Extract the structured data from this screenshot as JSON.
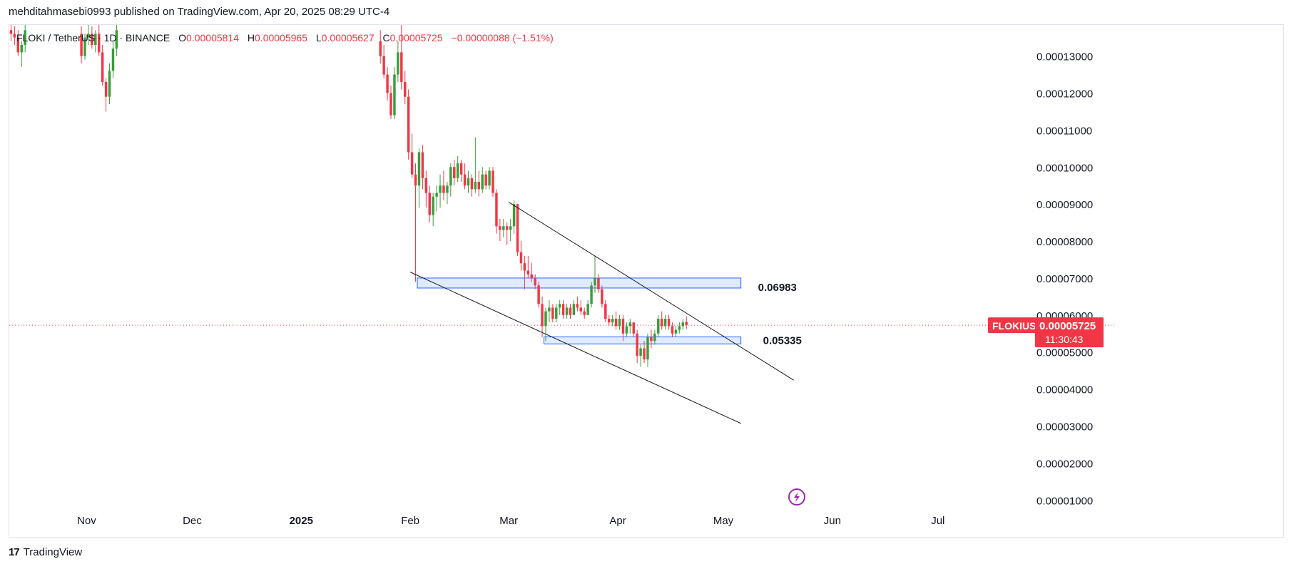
{
  "publisher": {
    "text": "mehditahmasebi0993 published on TradingView.com, Apr 20, 2025 08:29 UTC-4"
  },
  "legend": {
    "symbol": "FLOKI / TetherUS · 1D · BINANCE",
    "open_label": "O",
    "open": "0.00005814",
    "high_label": "H",
    "high": "0.00005965",
    "low_label": "L",
    "low": "0.00005627",
    "close_label": "C",
    "close": "0.00005725",
    "change": "−0.00000088 (−1.51%)"
  },
  "price_tag": {
    "symbol": "FLOKIUSDT",
    "price": "0.00005725",
    "countdown": "11:30:43",
    "color": "#f23645"
  },
  "footer": {
    "logo": "17",
    "brand": "TradingView"
  },
  "colors": {
    "up": "#089981",
    "up_body": "#3a9d3a",
    "down": "#f23645",
    "zone_fill": "#dbe7ff",
    "zone_stroke": "#2962ff",
    "trendline": "#131722",
    "grid_text": "#131722",
    "lightning": "#9c27b0"
  },
  "chart_data": {
    "type": "candlestick",
    "title": "FLOKI / TetherUS · 1D · BINANCE",
    "y_axis": {
      "ylim": [
        8.9e-06,
        0.0001384
      ],
      "ticks": [
        0.00013,
        0.00012,
        0.00011,
        0.0001,
        9e-05,
        8e-05,
        7e-05,
        6e-05,
        5e-05,
        4e-05,
        3e-05,
        2e-05,
        1e-05
      ],
      "tick_labels": [
        "0.00013000",
        "0.00012000",
        "0.00011000",
        "0.00010000",
        "0.00009000",
        "0.00008000",
        "0.00007000",
        "0.00006000",
        "0.00005000",
        "0.00004000",
        "0.00003000",
        "0.00002000",
        "0.00001000"
      ]
    },
    "x_axis": {
      "start_date": "2024-10-10",
      "end_date": "2025-07-27",
      "tick_labels": [
        {
          "label": "Nov",
          "date": "2024-11-01"
        },
        {
          "label": "Dec",
          "date": "2024-12-01"
        },
        {
          "label": "2025",
          "date": "2025-01-01",
          "bold": true
        },
        {
          "label": "Feb",
          "date": "2025-02-01"
        },
        {
          "label": "Mar",
          "date": "2025-03-01"
        },
        {
          "label": "Apr",
          "date": "2025-04-01"
        },
        {
          "label": "May",
          "date": "2025-05-01"
        },
        {
          "label": "Jun",
          "date": "2025-06-01"
        },
        {
          "label": "Jul",
          "date": "2025-07-01"
        }
      ]
    },
    "current_price": 5.725e-05,
    "candles": [
      {
        "d": "2024-10-10",
        "o": 0.000137,
        "h": 0.000139,
        "l": 0.000134,
        "c": 0.000136
      },
      {
        "d": "2024-10-11",
        "o": 0.000136,
        "h": 0.000138,
        "l": 0.000133,
        "c": 0.000135
      },
      {
        "d": "2024-10-12",
        "o": 0.000135,
        "h": 0.000137,
        "l": 0.00013,
        "c": 0.000131
      },
      {
        "d": "2024-10-13",
        "o": 0.000131,
        "h": 0.000134,
        "l": 0.000127,
        "c": 0.000133
      },
      {
        "d": "2024-10-14",
        "o": 0.000133,
        "h": 0.000139,
        "l": 0.000131,
        "c": 0.000137
      },
      {
        "d": "2024-10-30",
        "o": 0.000136,
        "h": 0.000138,
        "l": 0.000128,
        "c": 0.00013
      },
      {
        "d": "2024-10-31",
        "o": 0.00013,
        "h": 0.000136,
        "l": 0.000129,
        "c": 0.000135
      },
      {
        "d": "2024-11-01",
        "o": 0.000135,
        "h": 0.000139,
        "l": 0.000133,
        "c": 0.000136
      },
      {
        "d": "2024-11-02",
        "o": 0.000136,
        "h": 0.000138,
        "l": 0.000132,
        "c": 0.000133
      },
      {
        "d": "2024-11-03",
        "o": 0.000133,
        "h": 0.000137,
        "l": 0.000131,
        "c": 0.000136
      },
      {
        "d": "2024-11-04",
        "o": 0.000136,
        "h": 0.000139,
        "l": 0.00013,
        "c": 0.000131
      },
      {
        "d": "2024-11-05",
        "o": 0.000131,
        "h": 0.000133,
        "l": 0.000122,
        "c": 0.000123
      },
      {
        "d": "2024-11-06",
        "o": 0.000123,
        "h": 0.000124,
        "l": 0.000115,
        "c": 0.000119
      },
      {
        "d": "2024-11-07",
        "o": 0.000119,
        "h": 0.000128,
        "l": 0.000117,
        "c": 0.000126
      },
      {
        "d": "2024-11-08",
        "o": 0.000126,
        "h": 0.000134,
        "l": 0.000124,
        "c": 0.000132
      },
      {
        "d": "2024-11-09",
        "o": 0.000132,
        "h": 0.000139,
        "l": 0.00013,
        "c": 0.000137
      },
      {
        "d": "2025-01-23",
        "o": 0.000134,
        "h": 0.000137,
        "l": 0.000128,
        "c": 0.00013
      },
      {
        "d": "2025-01-24",
        "o": 0.00013,
        "h": 0.000133,
        "l": 0.000124,
        "c": 0.000125
      },
      {
        "d": "2025-01-25",
        "o": 0.000125,
        "h": 0.000127,
        "l": 0.000118,
        "c": 0.00012
      },
      {
        "d": "2025-01-26",
        "o": 0.00012,
        "h": 0.000122,
        "l": 0.000113,
        "c": 0.000114
      },
      {
        "d": "2025-01-27",
        "o": 0.000114,
        "h": 0.000127,
        "l": 0.000113,
        "c": 0.000125
      },
      {
        "d": "2025-01-28",
        "o": 0.000125,
        "h": 0.000134,
        "l": 0.000123,
        "c": 0.000131
      },
      {
        "d": "2025-01-29",
        "o": 0.000131,
        "h": 0.000139,
        "l": 0.000121,
        "c": 0.000123
      },
      {
        "d": "2025-01-30",
        "o": 0.000123,
        "h": 0.000126,
        "l": 0.000117,
        "c": 0.000119
      },
      {
        "d": "2025-01-31",
        "o": 0.000119,
        "h": 0.000121,
        "l": 0.000102,
        "c": 0.000104
      },
      {
        "d": "2025-02-01",
        "o": 0.000104,
        "h": 0.000109,
        "l": 9.7e-05,
        "c": 9.8e-05
      },
      {
        "d": "2025-02-02",
        "o": 9.8e-05,
        "h": 0.000101,
        "l": 6.9e-05,
        "c": 9.5e-05
      },
      {
        "d": "2025-02-03",
        "o": 9.5e-05,
        "h": 0.000105,
        "l": 8.9e-05,
        "c": 0.000104
      },
      {
        "d": "2025-02-04",
        "o": 0.000104,
        "h": 0.000106,
        "l": 9.4e-05,
        "c": 9.7e-05
      },
      {
        "d": "2025-02-05",
        "o": 9.7e-05,
        "h": 9.9e-05,
        "l": 8.9e-05,
        "c": 9.3e-05
      },
      {
        "d": "2025-02-06",
        "o": 9.3e-05,
        "h": 9.5e-05,
        "l": 8.5e-05,
        "c": 8.7e-05
      },
      {
        "d": "2025-02-07",
        "o": 8.7e-05,
        "h": 9.3e-05,
        "l": 8.4e-05,
        "c": 9.2e-05
      },
      {
        "d": "2025-02-08",
        "o": 9.2e-05,
        "h": 9.5e-05,
        "l": 8.8e-05,
        "c": 9.3e-05
      },
      {
        "d": "2025-02-09",
        "o": 9.3e-05,
        "h": 9.8e-05,
        "l": 8.9e-05,
        "c": 9.5e-05
      },
      {
        "d": "2025-02-10",
        "o": 9.5e-05,
        "h": 9.9e-05,
        "l": 9.1e-05,
        "c": 9.3e-05
      },
      {
        "d": "2025-02-11",
        "o": 9.3e-05,
        "h": 9.6e-05,
        "l": 9e-05,
        "c": 9.5e-05
      },
      {
        "d": "2025-02-12",
        "o": 9.5e-05,
        "h": 0.000101,
        "l": 9.2e-05,
        "c": 0.0001
      },
      {
        "d": "2025-02-13",
        "o": 0.0001,
        "h": 0.000102,
        "l": 9.5e-05,
        "c": 9.7e-05
      },
      {
        "d": "2025-02-14",
        "o": 9.7e-05,
        "h": 0.000103,
        "l": 9.6e-05,
        "c": 0.000101
      },
      {
        "d": "2025-02-15",
        "o": 0.000101,
        "h": 0.000102,
        "l": 9.6e-05,
        "c": 9.8e-05
      },
      {
        "d": "2025-02-16",
        "o": 9.8e-05,
        "h": 0.000101,
        "l": 9.4e-05,
        "c": 9.5e-05
      },
      {
        "d": "2025-02-17",
        "o": 9.5e-05,
        "h": 9.9e-05,
        "l": 9.3e-05,
        "c": 9.7e-05
      },
      {
        "d": "2025-02-18",
        "o": 9.7e-05,
        "h": 9.8e-05,
        "l": 9.2e-05,
        "c": 9.4e-05
      },
      {
        "d": "2025-02-19",
        "o": 9.4e-05,
        "h": 0.000108,
        "l": 9.3e-05,
        "c": 9.6e-05
      },
      {
        "d": "2025-02-20",
        "o": 9.6e-05,
        "h": 9.9e-05,
        "l": 9.2e-05,
        "c": 9.4e-05
      },
      {
        "d": "2025-02-21",
        "o": 9.4e-05,
        "h": 0.0001,
        "l": 9.3e-05,
        "c": 9.8e-05
      },
      {
        "d": "2025-02-22",
        "o": 9.8e-05,
        "h": 9.9e-05,
        "l": 9.4e-05,
        "c": 9.5e-05
      },
      {
        "d": "2025-02-23",
        "o": 9.5e-05,
        "h": 0.0001,
        "l": 9.4e-05,
        "c": 9.9e-05
      },
      {
        "d": "2025-02-24",
        "o": 9.9e-05,
        "h": 0.0001,
        "l": 9.2e-05,
        "c": 9.3e-05
      },
      {
        "d": "2025-02-25",
        "o": 9.3e-05,
        "h": 9.4e-05,
        "l": 8.2e-05,
        "c": 8.4e-05
      },
      {
        "d": "2025-02-26",
        "o": 8.4e-05,
        "h": 8.6e-05,
        "l": 8e-05,
        "c": 8.3e-05
      },
      {
        "d": "2025-02-27",
        "o": 8.3e-05,
        "h": 8.6e-05,
        "l": 8.1e-05,
        "c": 8.4e-05
      },
      {
        "d": "2025-02-28",
        "o": 8.4e-05,
        "h": 8.5e-05,
        "l": 7.9e-05,
        "c": 8.3e-05
      },
      {
        "d": "2025-03-01",
        "o": 8.3e-05,
        "h": 8.6e-05,
        "l": 8e-05,
        "c": 8.4e-05
      },
      {
        "d": "2025-03-02",
        "o": 8.4e-05,
        "h": 9.1e-05,
        "l": 8.2e-05,
        "c": 9e-05
      },
      {
        "d": "2025-03-03",
        "o": 9e-05,
        "h": 9e-05,
        "l": 7.6e-05,
        "c": 7.7e-05
      },
      {
        "d": "2025-03-04",
        "o": 7.7e-05,
        "h": 8e-05,
        "l": 7.2e-05,
        "c": 7.4e-05
      },
      {
        "d": "2025-03-05",
        "o": 7.4e-05,
        "h": 7.6e-05,
        "l": 6.7e-05,
        "c": 7.2e-05
      },
      {
        "d": "2025-03-06",
        "o": 7.2e-05,
        "h": 7.6e-05,
        "l": 7e-05,
        "c": 7.1e-05
      },
      {
        "d": "2025-03-07",
        "o": 7.1e-05,
        "h": 7.4e-05,
        "l": 6.9e-05,
        "c": 7e-05
      },
      {
        "d": "2025-03-08",
        "o": 7e-05,
        "h": 7.1e-05,
        "l": 6.7e-05,
        "c": 6.8e-05
      },
      {
        "d": "2025-03-09",
        "o": 6.8e-05,
        "h": 6.9e-05,
        "l": 6.2e-05,
        "c": 6.3e-05
      },
      {
        "d": "2025-03-10",
        "o": 6.3e-05,
        "h": 6.5e-05,
        "l": 5.4e-05,
        "c": 5.7e-05
      },
      {
        "d": "2025-03-11",
        "o": 5.7e-05,
        "h": 6.2e-05,
        "l": 5.3e-05,
        "c": 6.1e-05
      },
      {
        "d": "2025-03-12",
        "o": 6.1e-05,
        "h": 6.4e-05,
        "l": 5.8e-05,
        "c": 6.2e-05
      },
      {
        "d": "2025-03-13",
        "o": 6.2e-05,
        "h": 6.3e-05,
        "l": 5.8e-05,
        "c": 5.9e-05
      },
      {
        "d": "2025-03-14",
        "o": 5.9e-05,
        "h": 6.3e-05,
        "l": 5.8e-05,
        "c": 6.2e-05
      },
      {
        "d": "2025-03-15",
        "o": 6.2e-05,
        "h": 6.4e-05,
        "l": 6e-05,
        "c": 6.3e-05
      },
      {
        "d": "2025-03-16",
        "o": 6.3e-05,
        "h": 6.4e-05,
        "l": 5.9e-05,
        "c": 6e-05
      },
      {
        "d": "2025-03-17",
        "o": 6e-05,
        "h": 6.3e-05,
        "l": 5.9e-05,
        "c": 6.2e-05
      },
      {
        "d": "2025-03-18",
        "o": 6.2e-05,
        "h": 6.3e-05,
        "l": 5.9e-05,
        "c": 6e-05
      },
      {
        "d": "2025-03-19",
        "o": 6e-05,
        "h": 6.4e-05,
        "l": 6e-05,
        "c": 6.3e-05
      },
      {
        "d": "2025-03-20",
        "o": 6.3e-05,
        "h": 6.5e-05,
        "l": 6.1e-05,
        "c": 6.2e-05
      },
      {
        "d": "2025-03-21",
        "o": 6.2e-05,
        "h": 6.4e-05,
        "l": 6e-05,
        "c": 6.1e-05
      },
      {
        "d": "2025-03-22",
        "o": 6.1e-05,
        "h": 6.2e-05,
        "l": 5.9e-05,
        "c": 6e-05
      },
      {
        "d": "2025-03-23",
        "o": 6e-05,
        "h": 6.4e-05,
        "l": 6e-05,
        "c": 6.3e-05
      },
      {
        "d": "2025-03-24",
        "o": 6.3e-05,
        "h": 6.9e-05,
        "l": 6.2e-05,
        "c": 6.8e-05
      },
      {
        "d": "2025-03-25",
        "o": 6.8e-05,
        "h": 7.6e-05,
        "l": 6.6e-05,
        "c": 7e-05
      },
      {
        "d": "2025-03-26",
        "o": 7e-05,
        "h": 7.1e-05,
        "l": 6.6e-05,
        "c": 6.7e-05
      },
      {
        "d": "2025-03-27",
        "o": 6.7e-05,
        "h": 6.8e-05,
        "l": 6.2e-05,
        "c": 6.3e-05
      },
      {
        "d": "2025-03-28",
        "o": 6.3e-05,
        "h": 6.4e-05,
        "l": 5.8e-05,
        "c": 5.9e-05
      },
      {
        "d": "2025-03-29",
        "o": 5.9e-05,
        "h": 6e-05,
        "l": 5.7e-05,
        "c": 5.8e-05
      },
      {
        "d": "2025-03-30",
        "o": 5.8e-05,
        "h": 6e-05,
        "l": 5.7e-05,
        "c": 5.9e-05
      },
      {
        "d": "2025-03-31",
        "o": 5.9e-05,
        "h": 6.1e-05,
        "l": 5.6e-05,
        "c": 5.7e-05
      },
      {
        "d": "2025-04-01",
        "o": 5.7e-05,
        "h": 6e-05,
        "l": 5.6e-05,
        "c": 5.9e-05
      },
      {
        "d": "2025-04-02",
        "o": 5.9e-05,
        "h": 6e-05,
        "l": 5.3e-05,
        "c": 5.5e-05
      },
      {
        "d": "2025-04-03",
        "o": 5.5e-05,
        "h": 5.8e-05,
        "l": 5.4e-05,
        "c": 5.7e-05
      },
      {
        "d": "2025-04-04",
        "o": 5.7e-05,
        "h": 5.9e-05,
        "l": 5.5e-05,
        "c": 5.8e-05
      },
      {
        "d": "2025-04-05",
        "o": 5.8e-05,
        "h": 5.8e-05,
        "l": 5.4e-05,
        "c": 5.5e-05
      },
      {
        "d": "2025-04-06",
        "o": 5.5e-05,
        "h": 5.6e-05,
        "l": 4.7e-05,
        "c": 4.9e-05
      },
      {
        "d": "2025-04-07",
        "o": 4.9e-05,
        "h": 5.2e-05,
        "l": 4.6e-05,
        "c": 5.1e-05
      },
      {
        "d": "2025-04-08",
        "o": 5.1e-05,
        "h": 5.3e-05,
        "l": 4.7e-05,
        "c": 4.8e-05
      },
      {
        "d": "2025-04-09",
        "o": 4.8e-05,
        "h": 5.5e-05,
        "l": 4.6e-05,
        "c": 5.4e-05
      },
      {
        "d": "2025-04-10",
        "o": 5.4e-05,
        "h": 5.6e-05,
        "l": 5.1e-05,
        "c": 5.3e-05
      },
      {
        "d": "2025-04-11",
        "o": 5.3e-05,
        "h": 5.6e-05,
        "l": 5.2e-05,
        "c": 5.5e-05
      },
      {
        "d": "2025-04-12",
        "o": 5.5e-05,
        "h": 6e-05,
        "l": 5.4e-05,
        "c": 5.9e-05
      },
      {
        "d": "2025-04-13",
        "o": 5.9e-05,
        "h": 6.1e-05,
        "l": 5.6e-05,
        "c": 5.7e-05
      },
      {
        "d": "2025-04-14",
        "o": 5.7e-05,
        "h": 6e-05,
        "l": 5.6e-05,
        "c": 5.9e-05
      },
      {
        "d": "2025-04-15",
        "o": 5.9e-05,
        "h": 6e-05,
        "l": 5.6e-05,
        "c": 5.7e-05
      },
      {
        "d": "2025-04-16",
        "o": 5.7e-05,
        "h": 5.8e-05,
        "l": 5.4e-05,
        "c": 5.5e-05
      },
      {
        "d": "2025-04-17",
        "o": 5.5e-05,
        "h": 5.7e-05,
        "l": 5.4e-05,
        "c": 5.6e-05
      },
      {
        "d": "2025-04-18",
        "o": 5.6e-05,
        "h": 5.8e-05,
        "l": 5.5e-05,
        "c": 5.7e-05
      },
      {
        "d": "2025-04-19",
        "o": 5.7e-05,
        "h": 5.9e-05,
        "l": 5.6e-05,
        "c": 5.8e-05
      },
      {
        "d": "2025-04-20",
        "o": 5.814e-05,
        "h": 5.965e-05,
        "l": 5.627e-05,
        "c": 5.725e-05
      }
    ],
    "zones": [
      {
        "name": "upper",
        "label": "0.06983",
        "from": "2025-02-03",
        "to": "2025-05-06",
        "low": 6.73e-05,
        "high": 7e-05
      },
      {
        "name": "lower",
        "label": "0.05335",
        "from": "2025-03-11",
        "to": "2025-05-06",
        "low": 5.22e-05,
        "high": 5.41e-05
      }
    ],
    "trendlines": [
      {
        "name": "upper-trendline",
        "from": {
          "d": "2025-03-01",
          "p": 9.05e-05
        },
        "to": {
          "d": "2025-05-21",
          "p": 4.24e-05
        }
      },
      {
        "name": "lower-trendline",
        "from": {
          "d": "2025-02-01",
          "p": 7.16e-05
        },
        "to": {
          "d": "2025-05-06",
          "p": 3.07e-05
        }
      }
    ]
  }
}
